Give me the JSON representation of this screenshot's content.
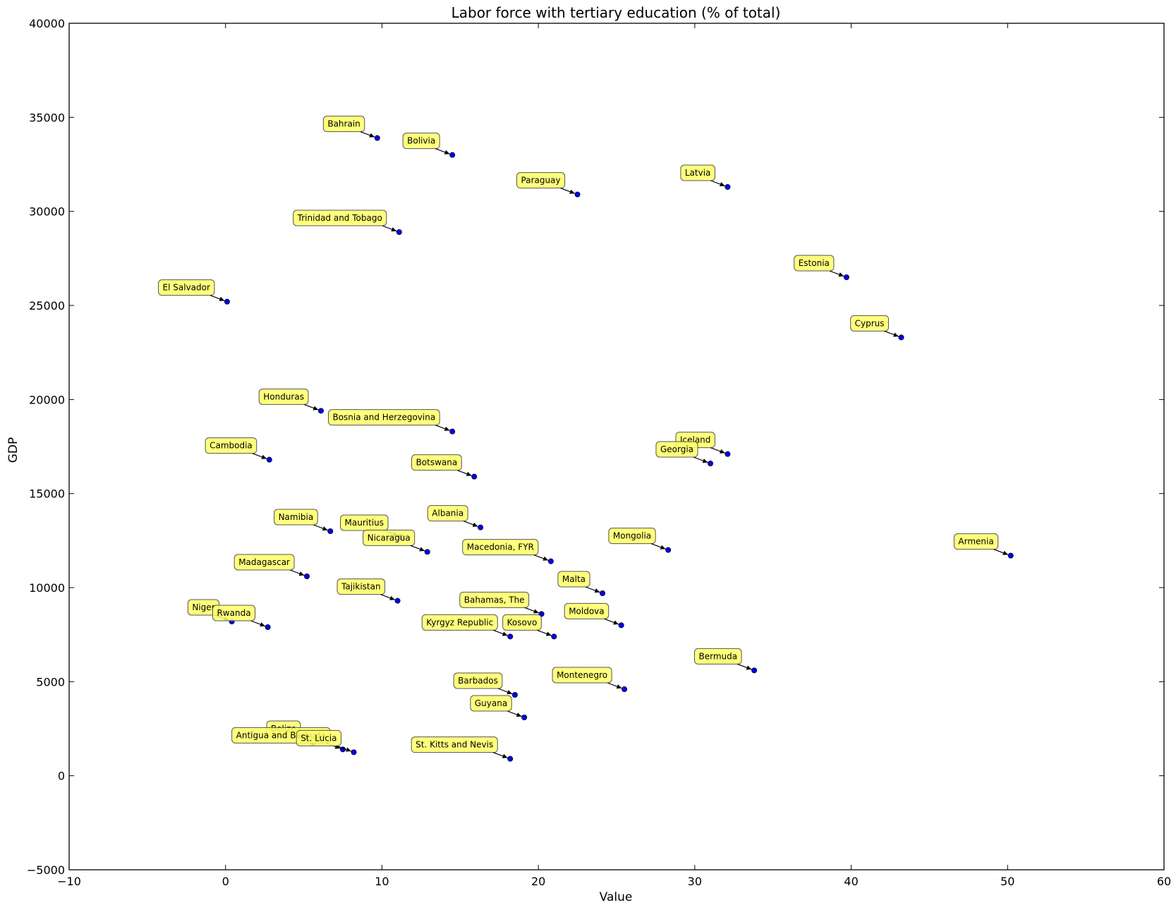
{
  "chart_data": {
    "type": "scatter",
    "title": "Labor force with tertiary education (% of total)",
    "xlabel": "Value",
    "ylabel": "GDP",
    "xlim": [
      -10,
      60
    ],
    "ylim": [
      -5000,
      40000
    ],
    "xticks": [
      -10,
      0,
      10,
      20,
      30,
      40,
      50,
      60
    ],
    "yticks": [
      -5000,
      0,
      5000,
      10000,
      15000,
      20000,
      25000,
      30000,
      35000,
      40000
    ],
    "ytick_labels": [
      "−5000",
      "0",
      "5000",
      "10000",
      "15000",
      "20000",
      "25000",
      "30000",
      "35000",
      "40000"
    ],
    "xtick_labels": [
      "−10",
      "0",
      "10",
      "20",
      "30",
      "40",
      "50",
      "60"
    ],
    "grid": false,
    "marker_color": "#0000ff",
    "annotation_color": "#ffff66",
    "points": [
      {
        "label": "Bahrain",
        "x": 9.7,
        "y": 33900
      },
      {
        "label": "Bolivia",
        "x": 14.5,
        "y": 33000
      },
      {
        "label": "Paraguay",
        "x": 22.5,
        "y": 30900
      },
      {
        "label": "Latvia",
        "x": 32.1,
        "y": 31300
      },
      {
        "label": "Trinidad and Tobago",
        "x": 11.1,
        "y": 28900
      },
      {
        "label": "Estonia",
        "x": 39.7,
        "y": 26500
      },
      {
        "label": "El Salvador",
        "x": 0.1,
        "y": 25200
      },
      {
        "label": "Cyprus",
        "x": 43.2,
        "y": 23300
      },
      {
        "label": "Honduras",
        "x": 6.1,
        "y": 19400
      },
      {
        "label": "Bosnia and Herzegovina",
        "x": 14.5,
        "y": 18300
      },
      {
        "label": "Iceland",
        "x": 32.1,
        "y": 17100
      },
      {
        "label": "Georgia",
        "x": 31.0,
        "y": 16600
      },
      {
        "label": "Cambodia",
        "x": 2.8,
        "y": 16800
      },
      {
        "label": "Botswana",
        "x": 15.9,
        "y": 15900
      },
      {
        "label": "Namibia",
        "x": 6.7,
        "y": 13000
      },
      {
        "label": "Albania",
        "x": 16.3,
        "y": 13200
      },
      {
        "label": "Mauritius",
        "x": 11.2,
        "y": 12700
      },
      {
        "label": "Nicaragua",
        "x": 12.9,
        "y": 11900
      },
      {
        "label": "Mongolia",
        "x": 28.3,
        "y": 12000
      },
      {
        "label": "Armenia",
        "x": 50.2,
        "y": 11700
      },
      {
        "label": "Macedonia, FYR",
        "x": 20.8,
        "y": 11400
      },
      {
        "label": "Madagascar",
        "x": 5.2,
        "y": 10600
      },
      {
        "label": "Malta",
        "x": 24.1,
        "y": 9700
      },
      {
        "label": "Tajikistan",
        "x": 11.0,
        "y": 9300
      },
      {
        "label": "Bahamas, The",
        "x": 20.2,
        "y": 8600
      },
      {
        "label": "Niger",
        "x": 0.4,
        "y": 8200
      },
      {
        "label": "Rwanda",
        "x": 2.7,
        "y": 7900
      },
      {
        "label": "Moldova",
        "x": 25.3,
        "y": 8000
      },
      {
        "label": "Kyrgyz Republic",
        "x": 18.2,
        "y": 7400
      },
      {
        "label": "Kosovo",
        "x": 21.0,
        "y": 7400
      },
      {
        "label": "Bermuda",
        "x": 33.8,
        "y": 5600
      },
      {
        "label": "Montenegro",
        "x": 25.5,
        "y": 4600
      },
      {
        "label": "Barbados",
        "x": 18.5,
        "y": 4300
      },
      {
        "label": "Guyana",
        "x": 19.1,
        "y": 3100
      },
      {
        "label": "Belize",
        "x": 5.6,
        "y": 1750
      },
      {
        "label": "Antigua and Barbuda",
        "x": 7.5,
        "y": 1400
      },
      {
        "label": "St. Lucia",
        "x": 8.2,
        "y": 1250
      },
      {
        "label": "St. Kitts and Nevis",
        "x": 18.2,
        "y": 900
      }
    ]
  }
}
